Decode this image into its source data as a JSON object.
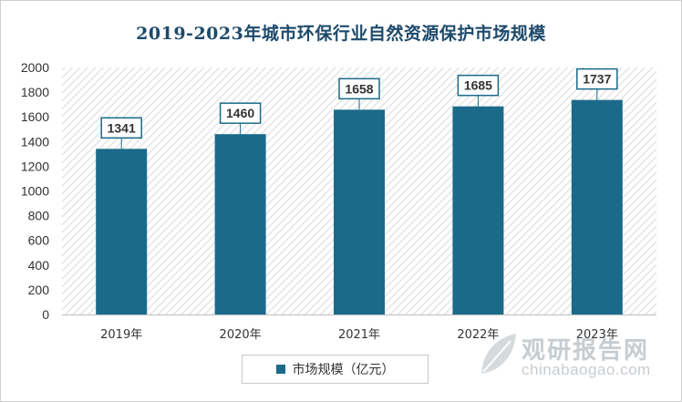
{
  "chart_data": {
    "type": "bar",
    "title": "2019-2023年城市环保行业自然资源保护市场规模",
    "categories": [
      "2019年",
      "2020年",
      "2021年",
      "2022年",
      "2023年"
    ],
    "series": [
      {
        "name": "市场规模（亿元）",
        "values": [
          1341,
          1460,
          1658,
          1685,
          1737
        ]
      }
    ],
    "ylim": [
      0,
      2000
    ],
    "yticks": [
      0,
      200,
      400,
      600,
      800,
      1000,
      1200,
      1400,
      1600,
      1800,
      2000
    ],
    "legend": "bottom",
    "grid": false,
    "bar_color": "#1b6a8a",
    "plot_background": "hatched-grey"
  },
  "watermark": {
    "name": "观研报告网",
    "url": "chinabaogao.com",
    "icon": "leaf-logo-icon"
  }
}
